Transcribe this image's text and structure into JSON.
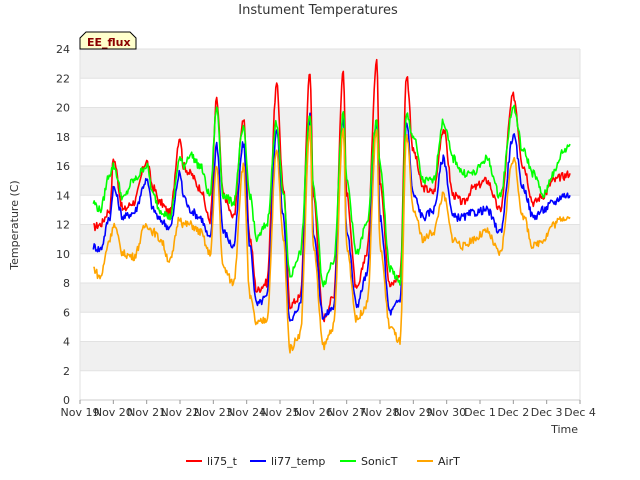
{
  "chart_data": {
    "type": "line",
    "title": "Instument Temperatures",
    "xlabel": "Time",
    "ylabel": "Temperature (C)",
    "badge": "EE_flux",
    "ylim": [
      0,
      24
    ],
    "yticks": [
      0,
      2,
      4,
      6,
      8,
      10,
      12,
      14,
      16,
      18,
      20,
      22,
      24
    ],
    "xlim": [
      0,
      15
    ],
    "xtick_labels": [
      "Nov 19",
      "Nov 20",
      "Nov 21",
      "Nov 22",
      "Nov 23",
      "Nov 24",
      "Nov 25",
      "Nov 26",
      "Nov 27",
      "Nov 28",
      "Nov 29",
      "Nov 30",
      "Dec 1",
      "Dec 2",
      "Dec 3",
      "Dec 4"
    ],
    "x_units": "days since Nov 19",
    "legend_position": "bottom-center",
    "grid": "alternating horizontal bands",
    "colors": {
      "li75_t": "#ff0000",
      "li77_temp": "#0000ff",
      "SonicT": "#00ff00",
      "AirT": "#ffa500",
      "band": "#f0f0f0"
    },
    "series": [
      {
        "name": "li75_t",
        "color": "#ff0000",
        "x": [
          0.4,
          0.6,
          0.9,
          1.0,
          1.3,
          1.6,
          2.0,
          2.2,
          2.4,
          2.7,
          3.0,
          3.1,
          3.3,
          3.6,
          3.9,
          4.1,
          4.3,
          4.6,
          4.9,
          5.1,
          5.3,
          5.6,
          5.9,
          6.1,
          6.3,
          6.6,
          6.9,
          7.0,
          7.3,
          7.6,
          7.9,
          8.0,
          8.3,
          8.6,
          8.9,
          9.0,
          9.3,
          9.6,
          9.8,
          10.0,
          10.3,
          10.6,
          10.9,
          11.2,
          11.5,
          11.8,
          12.2,
          12.6,
          13.0,
          13.3,
          13.6,
          13.9,
          14.2,
          14.5,
          14.7
        ],
        "y": [
          11.8,
          12.0,
          13.0,
          16.5,
          13.0,
          13.5,
          16.3,
          14.5,
          13.5,
          12.8,
          18.0,
          16.0,
          15.5,
          14.5,
          12.3,
          20.5,
          14.0,
          12.5,
          19.2,
          11.0,
          7.5,
          8.0,
          21.5,
          14.5,
          6.5,
          7.0,
          22.5,
          14.0,
          5.6,
          7.0,
          22.5,
          14.0,
          7.5,
          10.0,
          23.3,
          15.0,
          7.8,
          8.5,
          22.2,
          17.0,
          14.5,
          14.2,
          18.5,
          14.0,
          13.5,
          14.5,
          15.0,
          13.0,
          20.8,
          16.0,
          13.5,
          14.0,
          15.0,
          15.3,
          15.5
        ]
      },
      {
        "name": "li77_temp",
        "color": "#0000ff",
        "x": [
          0.4,
          0.6,
          0.9,
          1.0,
          1.3,
          1.6,
          2.0,
          2.2,
          2.4,
          2.7,
          3.0,
          3.1,
          3.3,
          3.6,
          3.9,
          4.1,
          4.3,
          4.6,
          4.9,
          5.1,
          5.3,
          5.6,
          5.9,
          6.1,
          6.3,
          6.6,
          6.9,
          7.0,
          7.3,
          7.6,
          7.9,
          8.0,
          8.3,
          8.6,
          8.9,
          9.0,
          9.3,
          9.6,
          9.8,
          10.0,
          10.3,
          10.6,
          10.9,
          11.2,
          11.5,
          11.8,
          12.2,
          12.6,
          13.0,
          13.3,
          13.6,
          13.9,
          14.2,
          14.5,
          14.7
        ],
        "y": [
          10.5,
          10.3,
          12.5,
          14.5,
          12.5,
          12.8,
          15.0,
          13.0,
          12.3,
          11.8,
          15.5,
          14.0,
          13.0,
          12.5,
          11.0,
          17.5,
          11.5,
          10.5,
          17.5,
          10.5,
          6.5,
          7.0,
          18.5,
          12.5,
          5.3,
          6.5,
          19.5,
          11.5,
          5.7,
          6.3,
          19.5,
          11.5,
          6.5,
          8.5,
          19.0,
          12.5,
          6.0,
          6.8,
          19.0,
          14.0,
          12.5,
          13.0,
          16.5,
          12.5,
          12.5,
          12.8,
          13.0,
          11.5,
          18.0,
          14.5,
          12.5,
          13.0,
          13.5,
          14.0,
          14.0
        ]
      },
      {
        "name": "SonicT",
        "color": "#00ff00",
        "x": [
          0.4,
          0.6,
          0.9,
          1.0,
          1.3,
          1.6,
          2.0,
          2.2,
          2.4,
          2.7,
          3.0,
          3.1,
          3.3,
          3.6,
          3.9,
          4.1,
          4.3,
          4.6,
          4.9,
          5.1,
          5.3,
          5.6,
          5.9,
          6.1,
          6.3,
          6.6,
          6.9,
          7.0,
          7.3,
          7.6,
          7.9,
          8.0,
          8.3,
          8.6,
          8.9,
          9.0,
          9.3,
          9.6,
          9.8,
          10.0,
          10.3,
          10.6,
          10.9,
          11.2,
          11.5,
          11.8,
          12.2,
          12.6,
          13.0,
          13.3,
          13.6,
          13.9,
          14.2,
          14.5,
          14.7
        ],
        "y": [
          13.5,
          13.0,
          15.5,
          16.0,
          13.8,
          15.0,
          16.0,
          14.0,
          13.0,
          12.5,
          16.5,
          16.0,
          16.8,
          16.0,
          14.0,
          20.0,
          14.0,
          13.5,
          18.5,
          14.0,
          11.0,
          12.0,
          19.0,
          14.0,
          8.5,
          10.0,
          19.5,
          14.5,
          8.0,
          9.5,
          19.5,
          15.0,
          10.0,
          12.0,
          19.0,
          16.0,
          9.0,
          8.0,
          19.5,
          18.0,
          15.0,
          15.0,
          19.0,
          16.5,
          15.5,
          15.5,
          16.5,
          14.0,
          20.0,
          17.0,
          15.5,
          14.0,
          15.5,
          17.0,
          17.5
        ]
      },
      {
        "name": "AirT",
        "color": "#ffa500",
        "x": [
          0.4,
          0.6,
          0.9,
          1.0,
          1.3,
          1.6,
          2.0,
          2.2,
          2.4,
          2.7,
          3.0,
          3.1,
          3.3,
          3.6,
          3.9,
          4.1,
          4.3,
          4.6,
          4.9,
          5.1,
          5.3,
          5.6,
          5.9,
          6.1,
          6.3,
          6.6,
          6.9,
          7.0,
          7.3,
          7.6,
          7.9,
          8.0,
          8.3,
          8.6,
          8.9,
          9.0,
          9.3,
          9.6,
          9.8,
          10.0,
          10.3,
          10.6,
          10.9,
          11.2,
          11.5,
          11.8,
          12.2,
          12.6,
          13.0,
          13.3,
          13.6,
          13.9,
          14.2,
          14.5,
          14.7
        ],
        "y": [
          9.0,
          8.4,
          11.0,
          12.0,
          10.0,
          9.8,
          12.0,
          11.5,
          11.0,
          9.5,
          12.5,
          12.0,
          12.0,
          11.5,
          10.0,
          16.0,
          9.0,
          8.0,
          16.0,
          7.0,
          5.2,
          5.5,
          17.0,
          11.0,
          3.5,
          4.5,
          18.5,
          10.5,
          3.7,
          5.0,
          18.5,
          10.5,
          5.5,
          6.5,
          18.5,
          10.5,
          5.0,
          4.0,
          18.0,
          13.0,
          11.0,
          11.5,
          14.0,
          11.0,
          10.5,
          11.0,
          11.5,
          10.0,
          16.5,
          12.5,
          10.5,
          11.0,
          12.0,
          12.5,
          12.5
        ]
      }
    ]
  }
}
